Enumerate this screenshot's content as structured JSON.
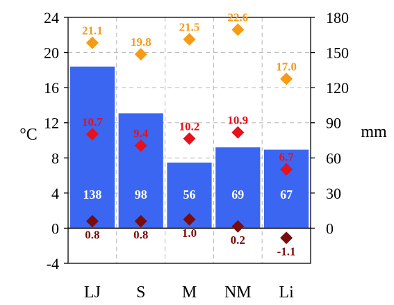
{
  "chart_data": {
    "type": "bar",
    "categories": [
      "LJ",
      "S",
      "M",
      "NM",
      "Li"
    ],
    "y_left": {
      "unit": "°C",
      "lim": [
        -4,
        24
      ],
      "ticks": [
        -4,
        0,
        4,
        8,
        12,
        16,
        20,
        24
      ]
    },
    "y_right": {
      "unit": "mm",
      "lim": [
        -30,
        180
      ],
      "ticks": [
        0,
        30,
        60,
        90,
        120,
        150,
        180
      ]
    },
    "grid": true,
    "bars": {
      "axis": "right",
      "color": "#3a66f2",
      "values": [
        138,
        98,
        56,
        69,
        67
      ],
      "labels": [
        "138",
        "98",
        "56",
        "69",
        "67"
      ]
    },
    "markers": [
      {
        "axis": "left",
        "marker": "diamond",
        "color": "#f59b16",
        "values": [
          21.1,
          19.8,
          21.5,
          22.6,
          17.0
        ],
        "labels": [
          "21.1",
          "19.8",
          "21.5",
          "22.6",
          "17.0"
        ]
      },
      {
        "axis": "left",
        "marker": "diamond",
        "color": "#e8101a",
        "values": [
          10.7,
          9.4,
          10.2,
          10.9,
          6.7
        ],
        "labels": [
          "10.7",
          "9.4",
          "10.2",
          "10.9",
          "6.7"
        ]
      },
      {
        "axis": "left",
        "marker": "diamond",
        "color": "#7a0c0c",
        "values": [
          0.8,
          0.8,
          1.0,
          0.2,
          -1.1
        ],
        "labels": [
          "0.8",
          "0.8",
          "1.0",
          "0.2",
          "-1.1"
        ]
      }
    ]
  }
}
